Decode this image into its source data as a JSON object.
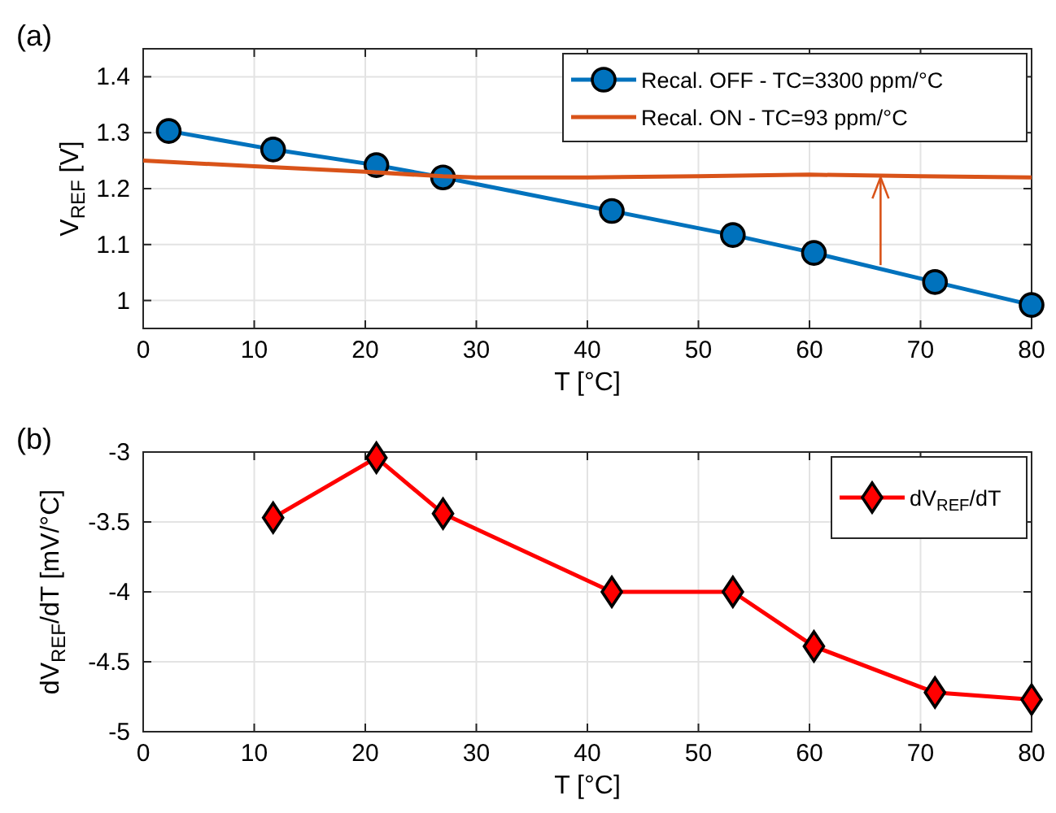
{
  "chart_data": [
    {
      "type": "line",
      "xlabel": "T [°C]",
      "ylabel": "V$_{REF}$ [V]",
      "xlim": [
        0,
        80
      ],
      "ylim": [
        0.95,
        1.45
      ],
      "xticks": [
        0,
        10,
        20,
        30,
        40,
        50,
        60,
        70,
        80
      ],
      "yticks": [
        1,
        1.1,
        1.2,
        1.3,
        1.4
      ],
      "grid": true,
      "legend": "top right",
      "annotations": [
        "(a)"
      ],
      "series": [
        {
          "name": "Recal. OFF - TC=3300 ppm/°C",
          "color": "#0072bd",
          "marker": "circle",
          "x": [
            2.3,
            11.7,
            21,
            27,
            42.2,
            53.1,
            60.4,
            71.3,
            80
          ],
          "values": [
            1.303,
            1.27,
            1.242,
            1.22,
            1.16,
            1.117,
            1.085,
            1.033,
            0.992
          ]
        },
        {
          "name": "Recal. ON - TC=93 ppm/°C",
          "color": "#d95319",
          "marker": "none",
          "x": [
            0,
            10,
            20,
            27,
            30,
            40,
            50,
            60,
            70,
            80
          ],
          "values": [
            1.25,
            1.24,
            1.23,
            1.222,
            1.22,
            1.22,
            1.222,
            1.225,
            1.222,
            1.22
          ]
        }
      ]
    },
    {
      "type": "line",
      "xlabel": "T [°C]",
      "ylabel": "dV$_{REF}$/dT [mV/°C]",
      "xlim": [
        0,
        80
      ],
      "ylim": [
        -5,
        -3
      ],
      "xticks": [
        0,
        10,
        20,
        30,
        40,
        50,
        60,
        70,
        80
      ],
      "yticks": [
        -5,
        -4.5,
        -4,
        -3.5,
        -3
      ],
      "grid": true,
      "legend": "top right",
      "annotations": [
        "(b)"
      ],
      "series": [
        {
          "name": "dV$_{REF}$/dT",
          "color": "#ff0000",
          "marker": "diamond",
          "x": [
            11.7,
            21,
            27,
            42.2,
            53.1,
            60.4,
            71.3,
            80
          ],
          "values": [
            -3.47,
            -3.04,
            -3.44,
            -4,
            -4,
            -4.39,
            -4.72,
            -4.77
          ]
        }
      ]
    }
  ]
}
